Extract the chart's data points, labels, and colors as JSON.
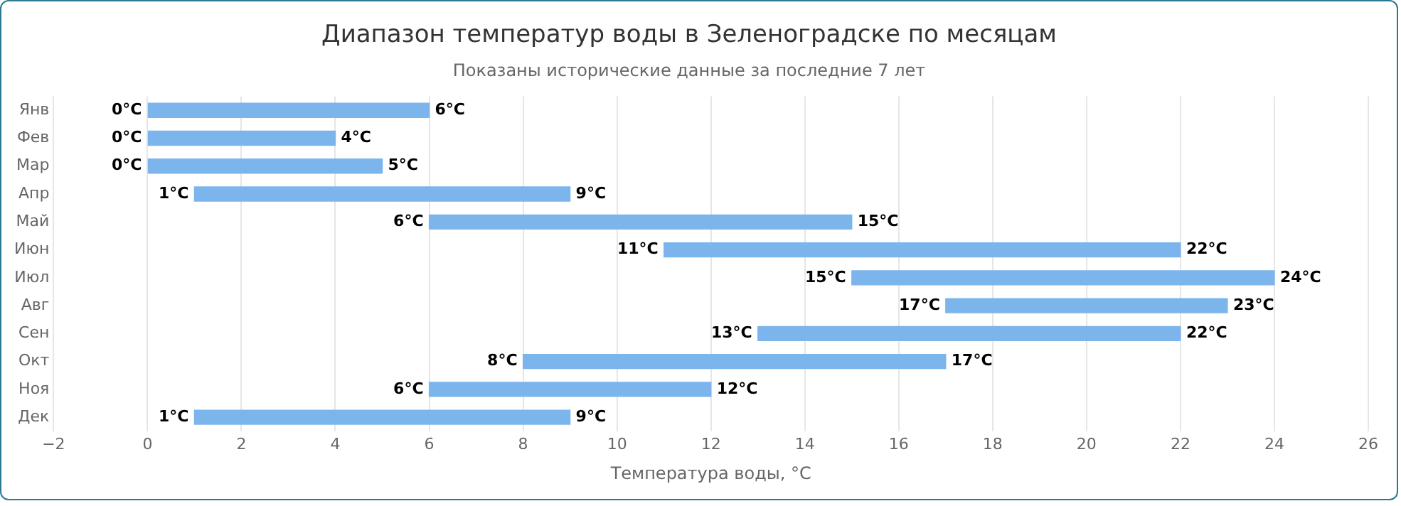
{
  "chart_data": {
    "type": "bar",
    "orientation": "horizontal",
    "title": "Диапазон температур воды в Зеленоградске по месяцам",
    "subtitle": "Показаны исторические данные за последние 7 лет",
    "xlabel": "Температура воды, °C",
    "categories": [
      "Янв",
      "Фев",
      "Мар",
      "Апр",
      "Май",
      "Июн",
      "Июл",
      "Авг",
      "Сен",
      "Окт",
      "Ноя",
      "Дек"
    ],
    "base": [
      0,
      0,
      0,
      1,
      6,
      11,
      15,
      17,
      13,
      8,
      6,
      1
    ],
    "values": [
      6,
      4,
      5,
      8,
      9,
      11,
      9,
      6,
      9,
      9,
      6,
      8
    ],
    "color": "#7cb5ec",
    "xlim": [
      -2,
      26
    ],
    "xticks": [
      -2,
      0,
      2,
      4,
      6,
      8,
      10,
      12,
      14,
      16,
      18,
      20,
      22,
      24,
      26
    ],
    "grid": "x",
    "legend": false,
    "annotations": [
      {
        "text": "0°C",
        "x": 0,
        "y": "Янв"
      },
      {
        "text": "6°C",
        "x": 6,
        "y": "Янв"
      },
      {
        "text": "0°C",
        "x": 0,
        "y": "Фев"
      },
      {
        "text": "4°C",
        "x": 4,
        "y": "Фев"
      },
      {
        "text": "0°C",
        "x": 0,
        "y": "Мар"
      },
      {
        "text": "5°C",
        "x": 5,
        "y": "Мар"
      },
      {
        "text": "1°C",
        "x": 1,
        "y": "Апр"
      },
      {
        "text": "9°C",
        "x": 9,
        "y": "Апр"
      },
      {
        "text": "6°C",
        "x": 6,
        "y": "Май"
      },
      {
        "text": "15°C",
        "x": 15,
        "y": "Май"
      },
      {
        "text": "11°C",
        "x": 11,
        "y": "Июн"
      },
      {
        "text": "22°C",
        "x": 22,
        "y": "Июн"
      },
      {
        "text": "15°C",
        "x": 15,
        "y": "Июл"
      },
      {
        "text": "24°C",
        "x": 24,
        "y": "Июл"
      },
      {
        "text": "17°C",
        "x": 17,
        "y": "Авг"
      },
      {
        "text": "23°C",
        "x": 23,
        "y": "Авг"
      },
      {
        "text": "13°C",
        "x": 13,
        "y": "Сен"
      },
      {
        "text": "22°C",
        "x": 22,
        "y": "Сен"
      },
      {
        "text": "8°C",
        "x": 8,
        "y": "Окт"
      },
      {
        "text": "17°C",
        "x": 17,
        "y": "Окт"
      },
      {
        "text": "6°C",
        "x": 6,
        "y": "Ноя"
      },
      {
        "text": "12°C",
        "x": 12,
        "y": "Ноя"
      },
      {
        "text": "1°C",
        "x": 1,
        "y": "Дек"
      },
      {
        "text": "9°C",
        "x": 9,
        "y": "Дек"
      }
    ]
  }
}
